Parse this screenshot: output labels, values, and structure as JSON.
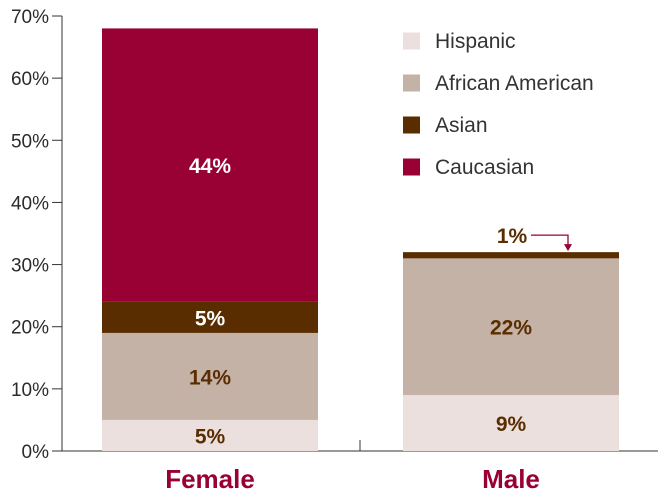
{
  "chart_data": {
    "type": "bar",
    "stacked": true,
    "categories": [
      "Female",
      "Male"
    ],
    "series": [
      {
        "name": "Hispanic",
        "values": [
          5,
          9
        ],
        "color": "#ebe0de",
        "label_color": "#5a2d00"
      },
      {
        "name": "African American",
        "values": [
          14,
          22
        ],
        "color": "#c4b2a6",
        "label_color": "#5a2d00"
      },
      {
        "name": "Asian",
        "values": [
          5,
          1
        ],
        "color": "#5a2d00",
        "label_color": "#ffffff"
      },
      {
        "name": "Caucasian",
        "values": [
          44,
          0
        ],
        "color": "#990033",
        "label_color": "#ffffff"
      }
    ],
    "data_labels": [
      [
        "5%",
        "9%"
      ],
      [
        "14%",
        "22%"
      ],
      [
        "5%",
        "1%"
      ],
      [
        "44%",
        ""
      ]
    ],
    "ylim": [
      0,
      70
    ],
    "y_ticks": [
      0,
      10,
      20,
      30,
      40,
      50,
      60,
      70
    ],
    "y_tick_labels": [
      "0%",
      "10%",
      "20%",
      "30%",
      "40%",
      "50%",
      "60%",
      "70%"
    ],
    "legend_position": "top-right",
    "legend_order": [
      0,
      1,
      2,
      3
    ],
    "grid": false,
    "category_label_color": "#990033",
    "annotation_arrow_color": "#990033",
    "axis_color": "#333333"
  }
}
